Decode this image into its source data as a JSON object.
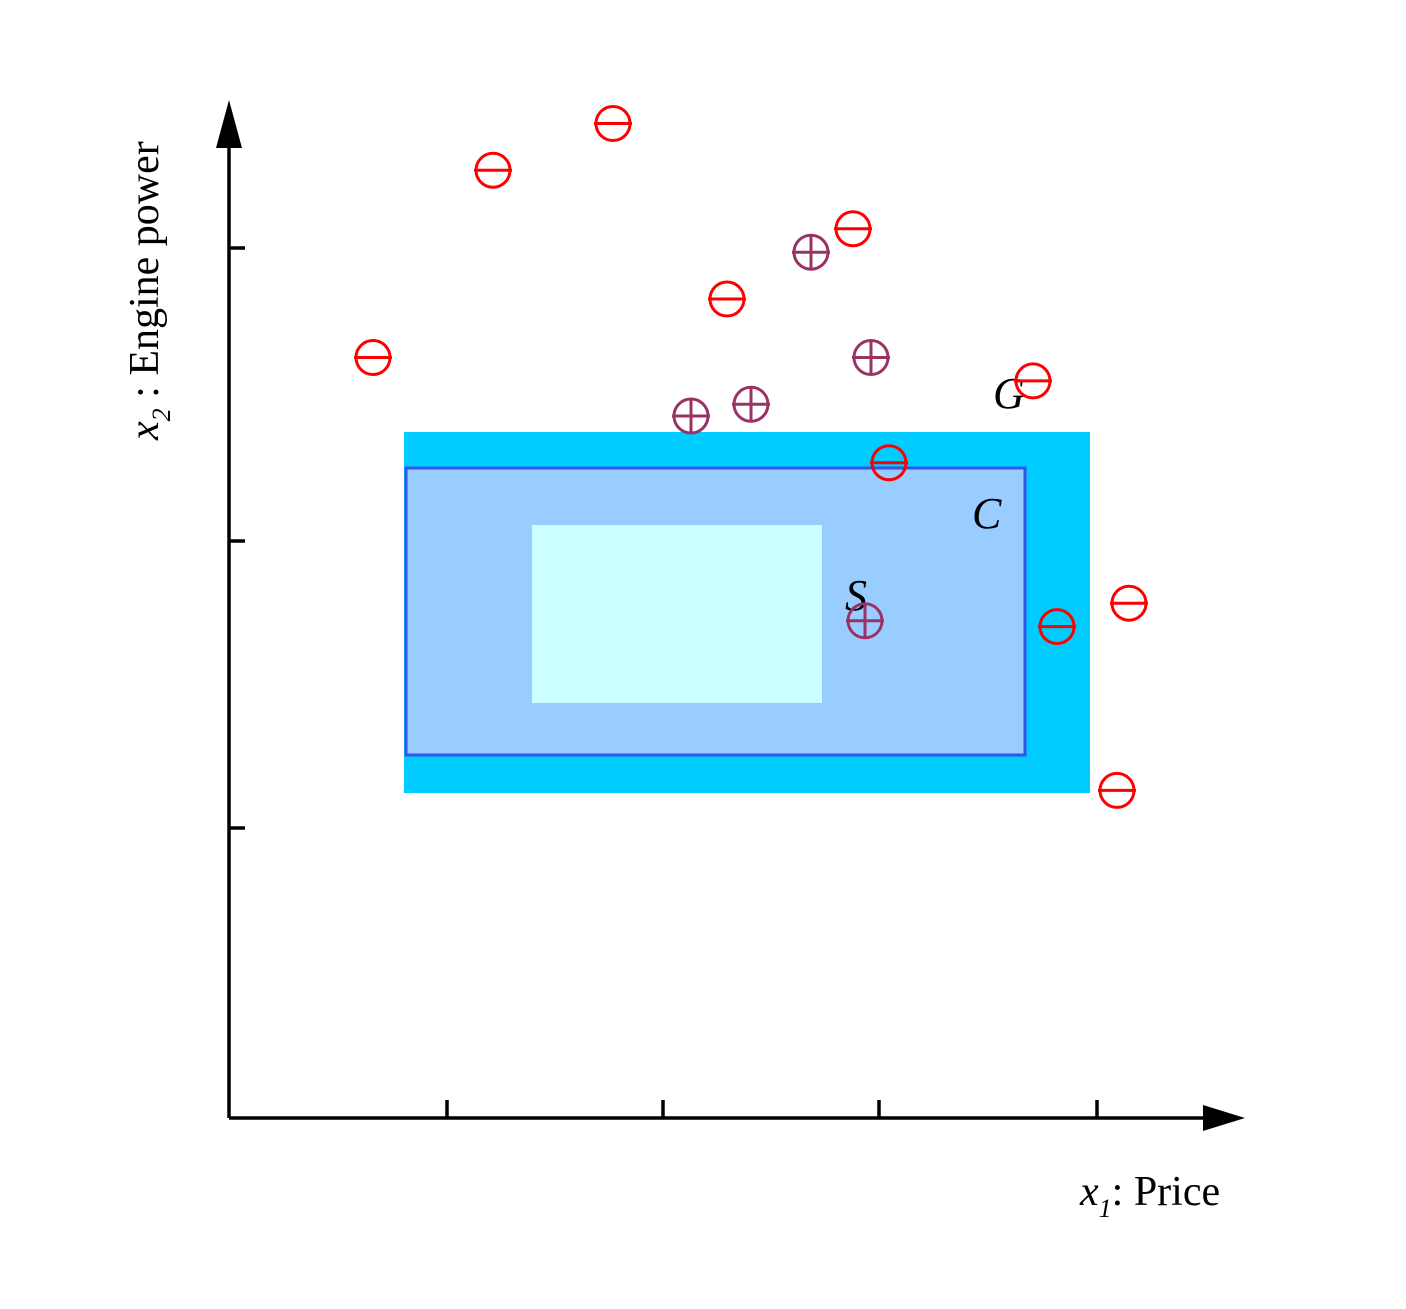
{
  "axes": {
    "x_var": "x",
    "x_sub": "1",
    "x_rest": ": Price",
    "y_var": "x",
    "y_sub": "2",
    "y_rest": " : Engine power"
  },
  "regions": [
    {
      "id": "G",
      "label": "G",
      "fill": "#00ccff",
      "stroke": "none"
    },
    {
      "id": "C",
      "label": "C",
      "fill": "#99ccff",
      "stroke": "#3355ee"
    },
    {
      "id": "S",
      "label": "S",
      "fill": "#ccffff",
      "stroke": "none"
    }
  ],
  "colors": {
    "positive": "#993366",
    "negative": "#ff0000",
    "axis": "#000000"
  },
  "positive_examples": [
    {
      "x": 3.85,
      "y": 6.0
    },
    {
      "x": 4.35,
      "y": 6.1
    },
    {
      "x": 4.85,
      "y": 7.4
    },
    {
      "x": 5.35,
      "y": 6.5
    },
    {
      "x": 5.3,
      "y": 4.25
    }
  ],
  "negative_examples": [
    {
      "x": 1.2,
      "y": 6.5
    },
    {
      "x": 2.2,
      "y": 8.1
    },
    {
      "x": 3.2,
      "y": 8.5
    },
    {
      "x": 4.15,
      "y": 7.0
    },
    {
      "x": 5.2,
      "y": 7.6
    },
    {
      "x": 5.5,
      "y": 5.6
    },
    {
      "x": 6.7,
      "y": 6.3
    },
    {
      "x": 6.9,
      "y": 4.2
    },
    {
      "x": 7.5,
      "y": 4.4
    },
    {
      "x": 7.4,
      "y": 2.8
    }
  ]
}
